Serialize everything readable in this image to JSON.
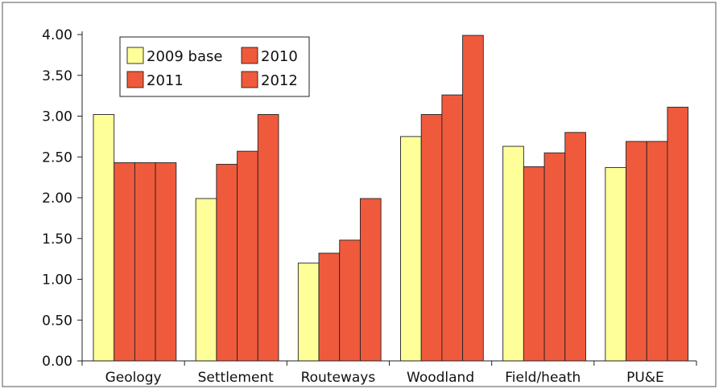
{
  "chart_data": {
    "type": "bar",
    "categories": [
      "Geology",
      "Settlement",
      "Routeways",
      "Woodland",
      "Field/heath",
      "PU&E"
    ],
    "series": [
      {
        "name": "2009 base",
        "color": "#ffff99",
        "values": [
          3.02,
          1.99,
          1.2,
          2.75,
          2.63,
          2.37
        ]
      },
      {
        "name": "2010",
        "color": "#f05a3c",
        "values": [
          2.43,
          2.41,
          1.32,
          3.02,
          2.38,
          2.69
        ]
      },
      {
        "name": "2011",
        "color": "#f05a3c",
        "values": [
          2.43,
          2.57,
          1.48,
          3.26,
          2.55,
          2.69
        ]
      },
      {
        "name": "2012",
        "color": "#f05a3c",
        "values": [
          2.43,
          3.02,
          1.99,
          3.99,
          2.8,
          3.11
        ]
      }
    ],
    "yticks": [
      "0.00",
      "0.50",
      "1.00",
      "1.50",
      "2.00",
      "2.50",
      "3.00",
      "3.50",
      "4.00"
    ],
    "ylim": [
      0,
      4
    ],
    "grid": false,
    "legend_position": "top-left"
  }
}
